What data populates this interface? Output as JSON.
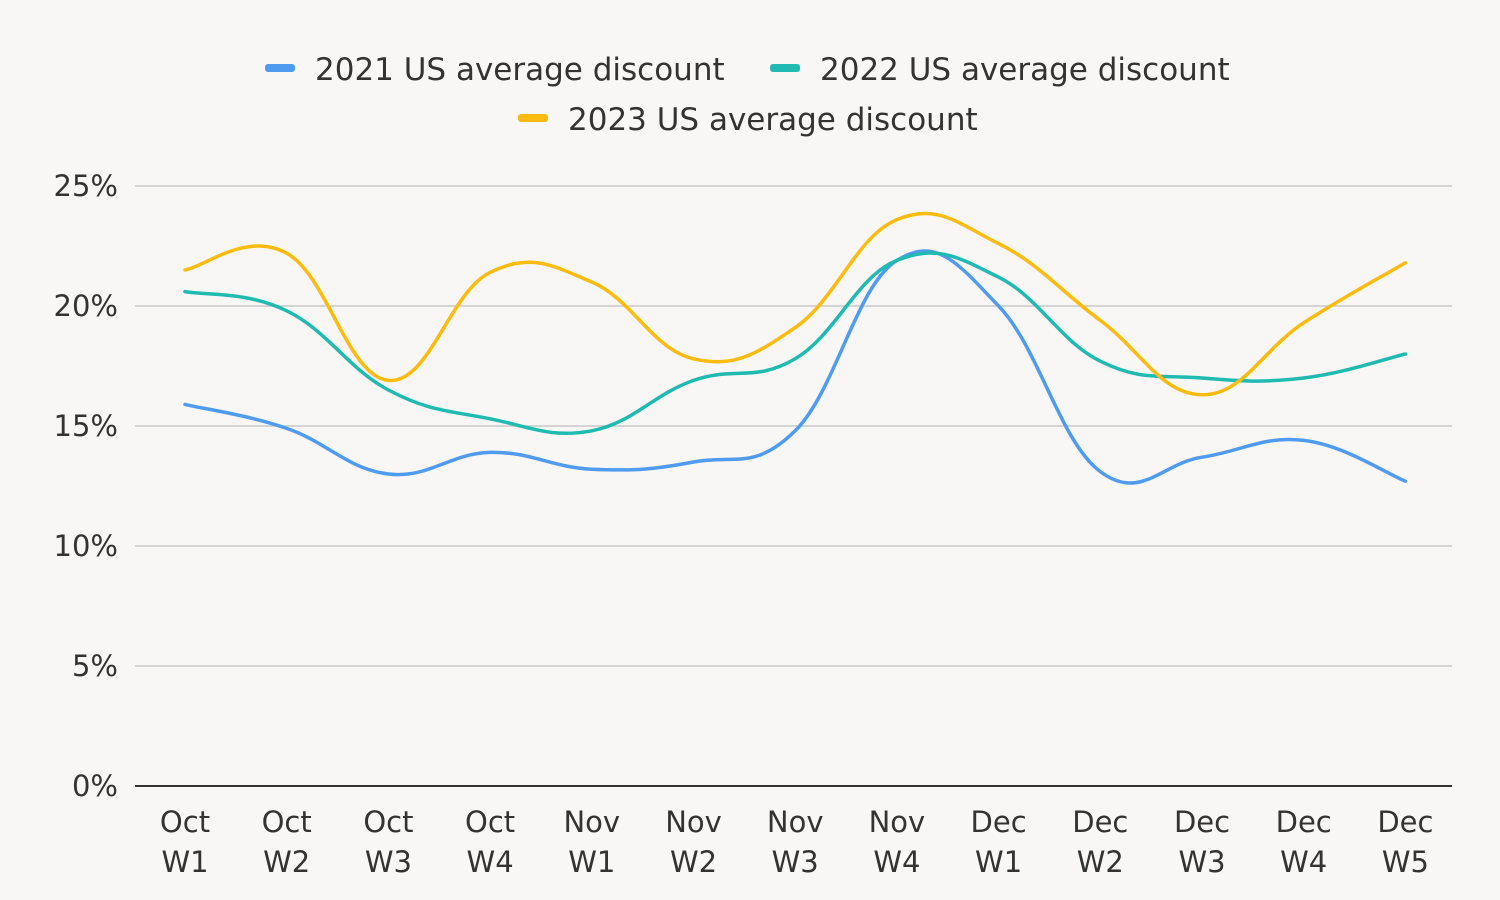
{
  "chart_data": {
    "type": "line",
    "title": "",
    "xlabel": "",
    "ylabel": "",
    "categories": [
      [
        "Oct",
        "W1"
      ],
      [
        "Oct",
        "W2"
      ],
      [
        "Oct",
        "W3"
      ],
      [
        "Oct",
        "W4"
      ],
      [
        "Nov",
        "W1"
      ],
      [
        "Nov",
        "W2"
      ],
      [
        "Nov",
        "W3"
      ],
      [
        "Nov",
        "W4"
      ],
      [
        "Dec",
        "W1"
      ],
      [
        "Dec",
        "W2"
      ],
      [
        "Dec",
        "W3"
      ],
      [
        "Dec",
        "W4"
      ],
      [
        "Dec",
        "W5"
      ]
    ],
    "ylim": [
      0,
      25
    ],
    "yticks": [
      0,
      5,
      10,
      15,
      20,
      25
    ],
    "ytick_labels": [
      "0%",
      "5%",
      "10%",
      "15%",
      "20%",
      "25%"
    ],
    "grid": true,
    "legend_position": "top-center",
    "series": [
      {
        "name": "2021 US average discount",
        "color": "#4f9bef",
        "values": [
          15.9,
          14.9,
          13.0,
          13.9,
          13.2,
          13.5,
          14.8,
          21.9,
          20.0,
          13.1,
          13.7,
          14.4,
          12.7
        ]
      },
      {
        "name": "2022 US average discount",
        "color": "#1fbab0",
        "values": [
          20.6,
          19.8,
          16.5,
          15.3,
          14.8,
          16.9,
          17.8,
          21.9,
          21.2,
          17.7,
          17.0,
          17.0,
          18.0
        ]
      },
      {
        "name": "2023 US average discount",
        "color": "#fcbb0f",
        "values": [
          21.5,
          22.2,
          16.9,
          21.4,
          21.0,
          17.8,
          19.1,
          23.6,
          22.6,
          19.4,
          16.3,
          19.3,
          21.8
        ]
      }
    ]
  }
}
